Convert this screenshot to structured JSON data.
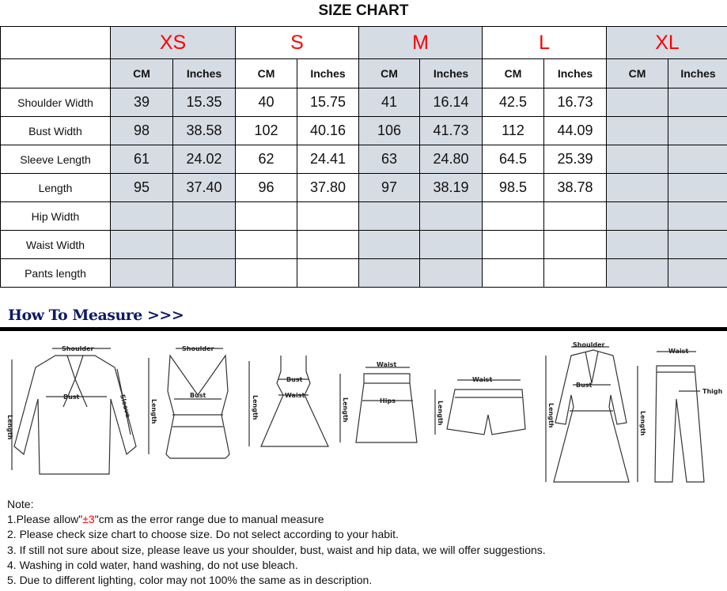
{
  "title": "SIZE CHART",
  "sizes": [
    "XS",
    "S",
    "M",
    "L",
    "XL"
  ],
  "units": [
    "CM",
    "Inches"
  ],
  "rows": [
    {
      "label": "Shoulder Width",
      "values": [
        "39",
        "15.35",
        "40",
        "15.75",
        "41",
        "16.14",
        "42.5",
        "16.73",
        "",
        ""
      ]
    },
    {
      "label": "Bust Width",
      "values": [
        "98",
        "38.58",
        "102",
        "40.16",
        "106",
        "41.73",
        "112",
        "44.09",
        "",
        ""
      ]
    },
    {
      "label": "Sleeve Length",
      "values": [
        "61",
        "24.02",
        "62",
        "24.41",
        "63",
        "24.80",
        "64.5",
        "25.39",
        "",
        ""
      ]
    },
    {
      "label": "Length",
      "values": [
        "95",
        "37.40",
        "96",
        "37.80",
        "97",
        "38.19",
        "98.5",
        "38.78",
        "",
        ""
      ]
    },
    {
      "label": "Hip Width",
      "values": [
        "",
        "",
        "",
        "",
        "",
        "",
        "",
        "",
        "",
        ""
      ]
    },
    {
      "label": "Waist Width",
      "values": [
        "",
        "",
        "",
        "",
        "",
        "",
        "",
        "",
        "",
        ""
      ]
    },
    {
      "label": "Pants length",
      "values": [
        "",
        "",
        "",
        "",
        "",
        "",
        "",
        "",
        "",
        ""
      ]
    }
  ],
  "colors": {
    "size_label": "#ff0000",
    "shaded": "#d6dce4",
    "heading": "#0d1a66"
  },
  "how_to_measure": {
    "heading": "How To Measure >>>",
    "labels": {
      "shoulder": "Shoulder",
      "bust": "Bust",
      "length": "Length",
      "sleeve": "Sleeve",
      "waist": "Waist",
      "hips": "Hips",
      "thigh": "Thigh"
    }
  },
  "notes": {
    "heading": "Note:",
    "n1_pre": "1.Please allow\"",
    "n1_red": "±3",
    "n1_post": "\"cm as the error range due to manual measure",
    "items": [
      "2. Please check size chart to choose size. Do not select according to your habit.",
      "3. If still not sure about size, please leave us your shoulder, bust, waist and hip data, we will offer suggestions.",
      "4. Washing in cold water, hand washing, do not use bleach.",
      "5. Due to different lighting, color may not 100% the same as in description."
    ]
  }
}
